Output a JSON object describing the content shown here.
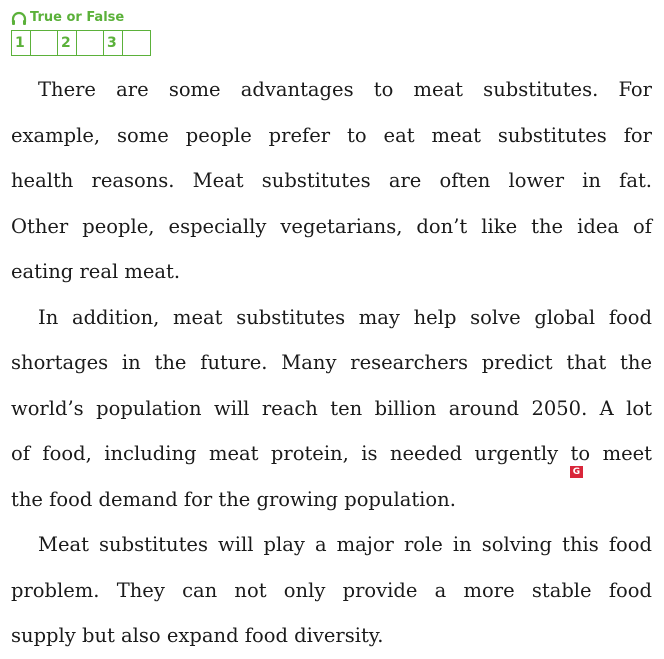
{
  "header": {
    "icon": "headphones-icon",
    "title": "True or False",
    "accent_color": "#5bb13a"
  },
  "answer_boxes": [
    "1",
    "2",
    "3"
  ],
  "paragraphs": [
    [
      "There are some advantages to meat substitutes.  For",
      "example, some people prefer to eat meat substitutes for",
      "health reasons.  Meat substitutes are often lower in fat.",
      "Other people, especially vegetarians, don’t like the idea of",
      "eating real meat."
    ],
    [
      "In addition, meat substitutes may help solve global food",
      "shortages in the future.  Many researchers predict that the",
      "world’s population will reach ten billion around 2050.  A lot",
      "of food, including meat protein, is needed urgently to meet",
      "the food demand for the growing population."
    ],
    [
      "Meat substitutes will play a major role in solving this food",
      "problem.  They can not only provide a more stable food",
      "supply but also expand food diversity."
    ]
  ],
  "glossary_marker": {
    "label": "G",
    "color": "#d9263a"
  }
}
